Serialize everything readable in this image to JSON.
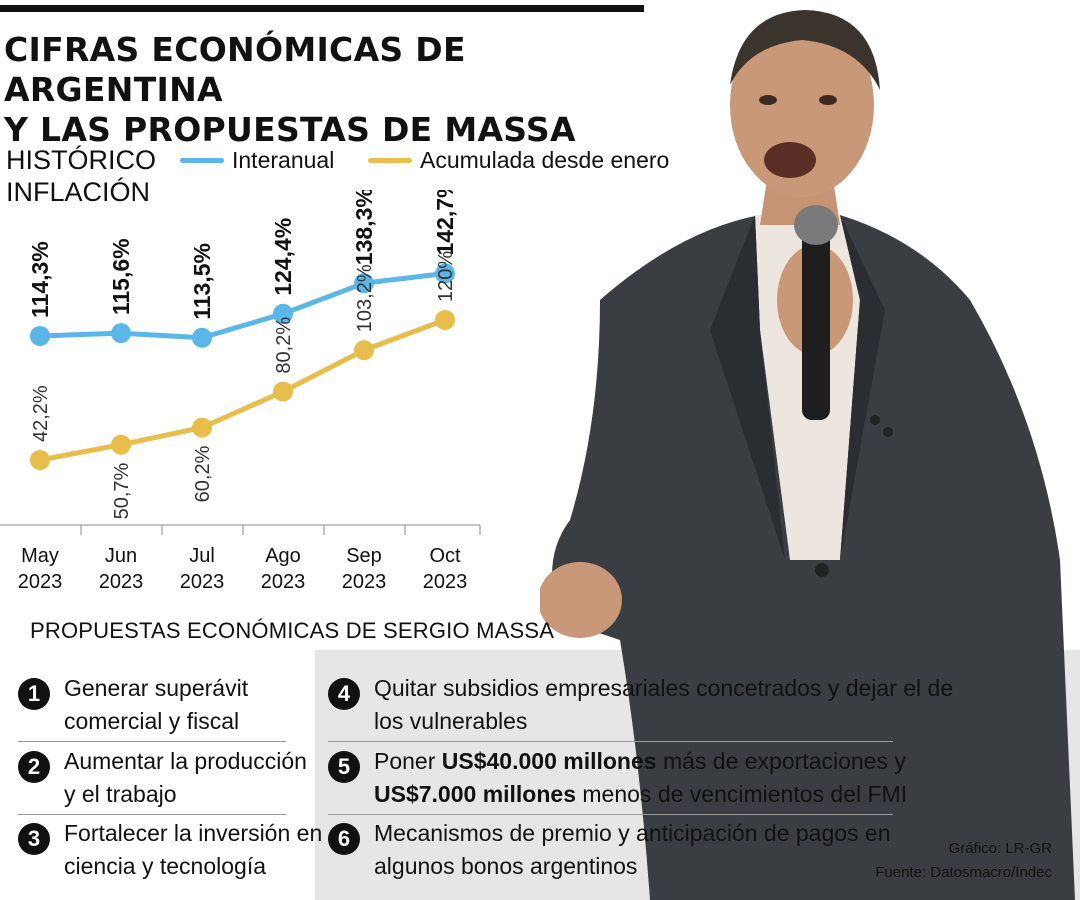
{
  "title": {
    "line1": "CIFRAS ECONÓMICAS DE ARGENTINA",
    "line2": "Y LAS PROPUESTAS DE MASSA"
  },
  "history": {
    "line1": "HISTÓRICO",
    "line2": "INFLACIÓN"
  },
  "colors": {
    "interanual": "#5cb6e8",
    "acumulada": "#e8bd4c"
  },
  "chart_data": {
    "type": "line",
    "categories": [
      "May 2023",
      "Jun 2023",
      "Jul 2023",
      "Ago 2023",
      "Sep 2023",
      "Oct 2023"
    ],
    "x_labels": [
      [
        "May",
        "2023"
      ],
      [
        "Jun",
        "2023"
      ],
      [
        "Jul",
        "2023"
      ],
      [
        "Ago",
        "2023"
      ],
      [
        "Sep",
        "2023"
      ],
      [
        "Oct",
        "2023"
      ]
    ],
    "series": [
      {
        "name": "Interanual",
        "values": [
          114.3,
          115.6,
          113.5,
          124.4,
          138.3,
          142.7
        ],
        "labels": [
          "114,3%",
          "115,6%",
          "113,5%",
          "124,4%",
          "138,3%",
          "142,7%"
        ]
      },
      {
        "name": "Acumulada desde enero",
        "values": [
          42.2,
          50.7,
          60.2,
          80.2,
          103.2,
          120
        ],
        "labels": [
          "42,2%",
          "50,7%",
          "60,2%",
          "80,2%",
          "103,2%",
          "120%"
        ]
      }
    ]
  },
  "proposals": {
    "title": "PROPUESTAS ECONÓMICAS DE SERGIO MASSA",
    "items": [
      {
        "num": "1",
        "line1": "Generar superávit",
        "line2": "comercial y fiscal"
      },
      {
        "num": "2",
        "line1": "Aumentar la producción",
        "line2": "y el trabajo"
      },
      {
        "num": "3",
        "line1": "Fortalecer la inversión en",
        "line2": "ciencia y tecnología"
      },
      {
        "num": "4",
        "line1": "Quitar subsidios empresariales concetrados y dejar el de",
        "line2": "los vulnerables"
      },
      {
        "num": "5",
        "pre": "Poner ",
        "bold1": "US$40.000 millones",
        "mid": " más de exportaciones y",
        "bold2": "US$7.000 millones",
        "post": " menos de vencimientos del FMI"
      },
      {
        "num": "6",
        "line1": "Mecanismos de premio y anticipación de pagos en",
        "line2": "algunos bonos argentinos"
      }
    ]
  },
  "credits": {
    "grafico": "Gráfico: LR-GR",
    "fuente": "Fuente: Datosmacro/Indec"
  }
}
